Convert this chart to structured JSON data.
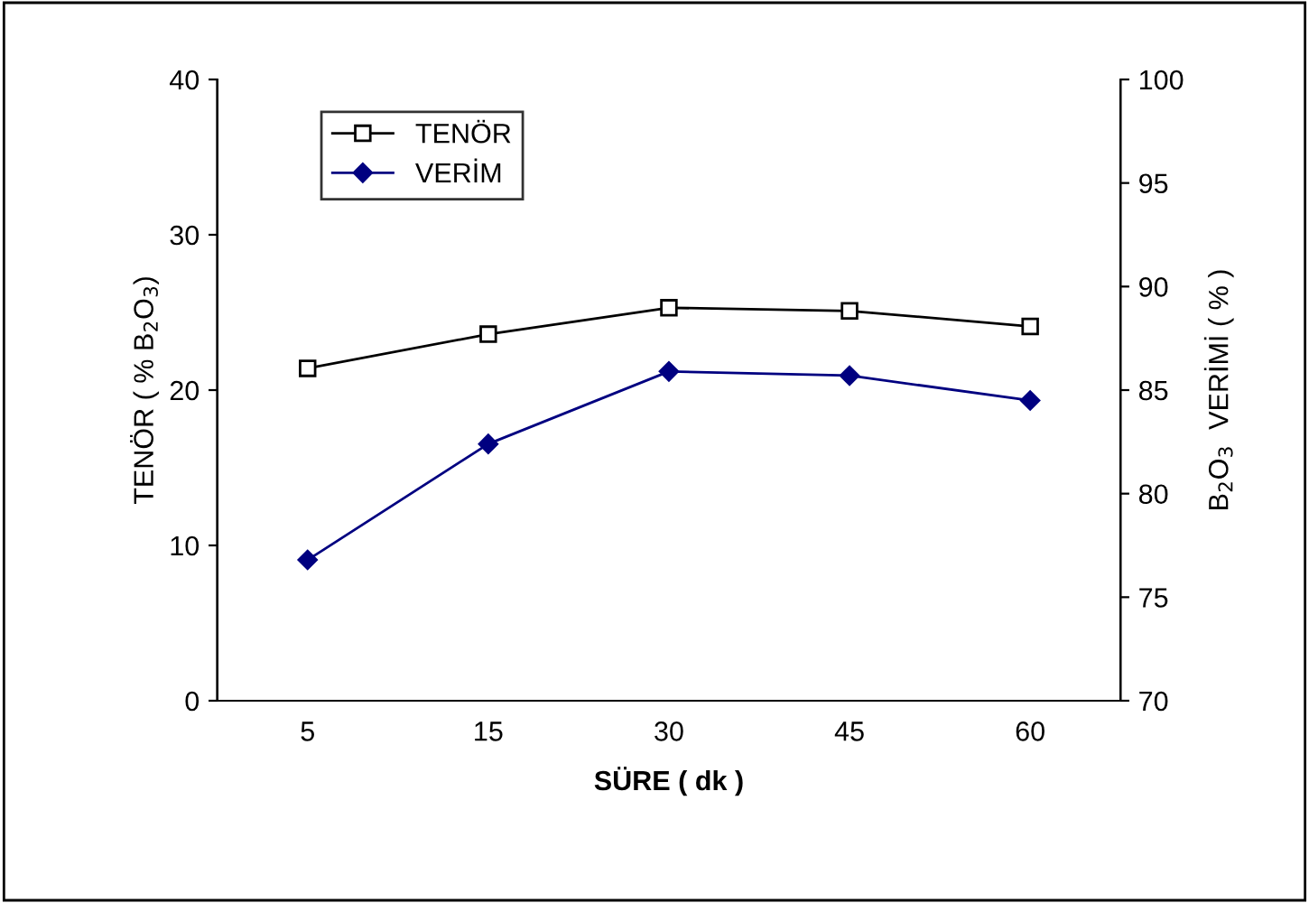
{
  "chart_data": {
    "type": "line",
    "xlabel": "SÜRE ( dk )",
    "ylabel": "TENÖR ( % B$_{2}$O$_{3}$)",
    "y2label": "B$_{2}$O$_{3}$  VERİMİ ( % )",
    "categories": [
      "5",
      "15",
      "30",
      "45",
      "60"
    ],
    "series": [
      {
        "name": "TENÖR",
        "color": "#000000",
        "marker": "square",
        "values": [
          21.4,
          23.6,
          25.3,
          25.1,
          24.1
        ]
      },
      {
        "name": "VERİM",
        "color": "#000080",
        "marker": "diamond",
        "axis": "y2",
        "values": [
          76.8,
          82.4,
          85.9,
          85.7,
          84.5
        ]
      }
    ],
    "ylim": [
      0,
      40
    ],
    "yticks": [
      0,
      10,
      20,
      30,
      40
    ],
    "y2lim": [
      70,
      100
    ],
    "y2ticks": [
      70,
      75,
      80,
      85,
      90,
      95,
      100
    ],
    "grid": false,
    "legend": "top left"
  }
}
